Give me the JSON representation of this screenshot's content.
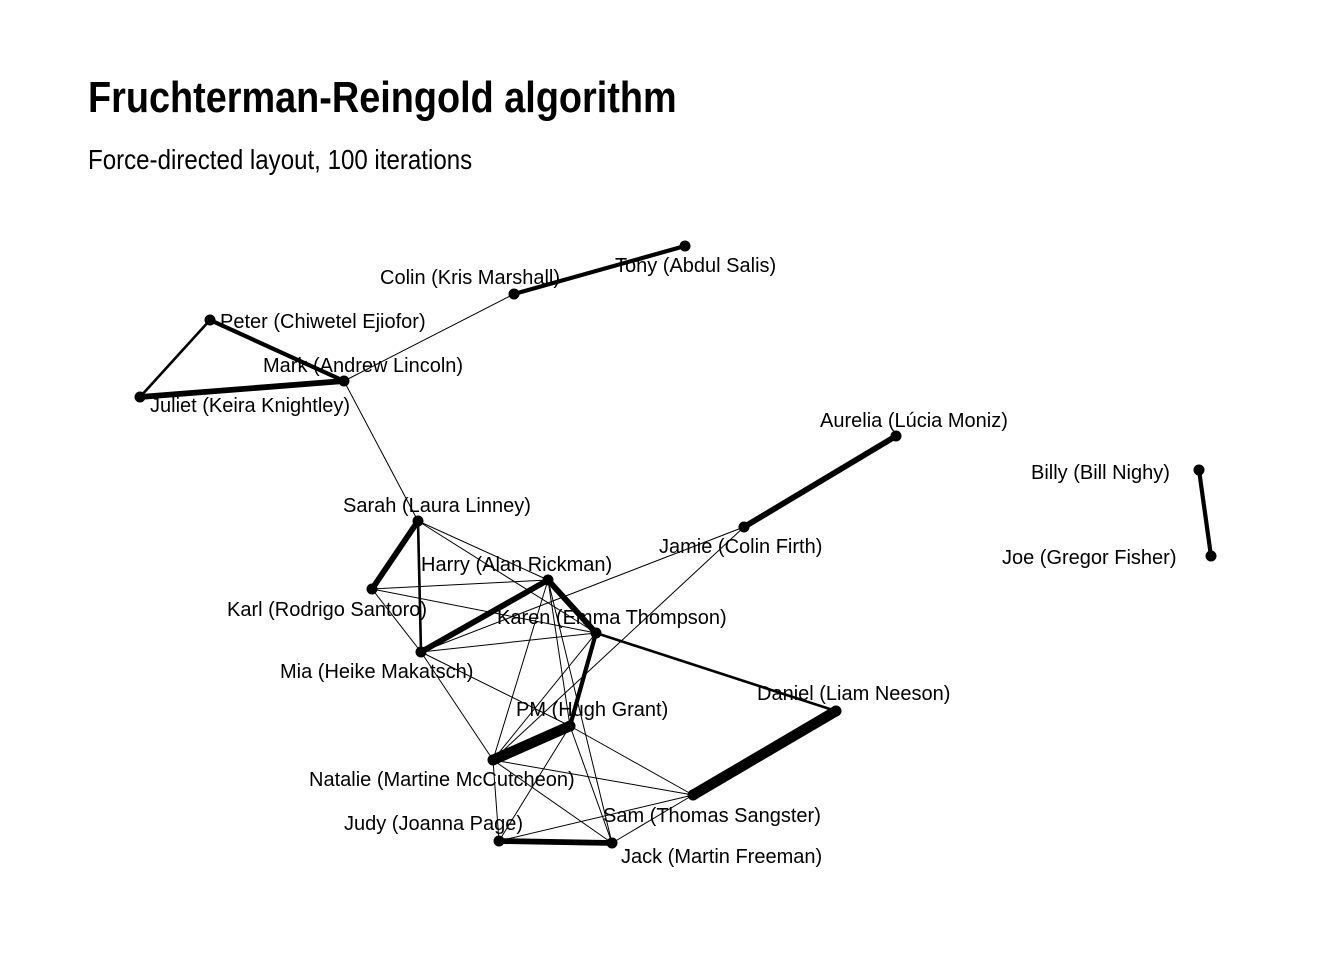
{
  "title": "Fruchterman-Reingold algorithm",
  "subtitle": "Force-directed layout, 100 iterations",
  "colors": {
    "edge": "#000000",
    "node": "#000000",
    "text": "#000000",
    "background": "#ffffff"
  },
  "nodes": [
    {
      "id": "tony",
      "label": "Tony (Abdul Salis)"
    },
    {
      "id": "colin",
      "label": "Colin (Kris Marshall)"
    },
    {
      "id": "peter",
      "label": "Peter (Chiwetel Ejiofor)"
    },
    {
      "id": "mark",
      "label": "Mark (Andrew Lincoln)"
    },
    {
      "id": "juliet",
      "label": "Juliet (Keira Knightley)"
    },
    {
      "id": "aurelia",
      "label": "Aurelia (Lúcia Moniz)"
    },
    {
      "id": "billy",
      "label": "Billy (Bill Nighy)"
    },
    {
      "id": "joe",
      "label": "Joe (Gregor Fisher)"
    },
    {
      "id": "sarah",
      "label": "Sarah (Laura Linney)"
    },
    {
      "id": "jamie",
      "label": "Jamie (Colin Firth)"
    },
    {
      "id": "harry",
      "label": "Harry (Alan Rickman)"
    },
    {
      "id": "karl",
      "label": "Karl (Rodrigo Santoro)"
    },
    {
      "id": "karen",
      "label": "Karen (Emma Thompson)"
    },
    {
      "id": "mia",
      "label": "Mia (Heike Makatsch)"
    },
    {
      "id": "daniel",
      "label": "Daniel (Liam Neeson)"
    },
    {
      "id": "pm",
      "label": "PM (Hugh Grant)"
    },
    {
      "id": "natalie",
      "label": "Natalie (Martine McCutcheon)"
    },
    {
      "id": "sam",
      "label": "Sam (Thomas Sangster)"
    },
    {
      "id": "judy",
      "label": "Judy (Joanna Page)"
    },
    {
      "id": "jack",
      "label": "Jack (Martin Freeman)"
    }
  ],
  "edges": [
    {
      "source": "colin",
      "target": "tony",
      "weight": 3
    },
    {
      "source": "colin",
      "target": "mark",
      "weight": 1
    },
    {
      "source": "peter",
      "target": "mark",
      "weight": 3
    },
    {
      "source": "peter",
      "target": "juliet",
      "weight": 2
    },
    {
      "source": "juliet",
      "target": "mark",
      "weight": 4
    },
    {
      "source": "mark",
      "target": "sarah",
      "weight": 1
    },
    {
      "source": "aurelia",
      "target": "jamie",
      "weight": 4
    },
    {
      "source": "billy",
      "target": "joe",
      "weight": 3
    },
    {
      "source": "sarah",
      "target": "karl",
      "weight": 4
    },
    {
      "source": "sarah",
      "target": "mia",
      "weight": 2
    },
    {
      "source": "sarah",
      "target": "harry",
      "weight": 1
    },
    {
      "source": "sarah",
      "target": "karen",
      "weight": 1
    },
    {
      "source": "jamie",
      "target": "mia",
      "weight": 1
    },
    {
      "source": "jamie",
      "target": "natalie",
      "weight": 1
    },
    {
      "source": "karl",
      "target": "harry",
      "weight": 1
    },
    {
      "source": "karl",
      "target": "karen",
      "weight": 1
    },
    {
      "source": "karl",
      "target": "mia",
      "weight": 1
    },
    {
      "source": "harry",
      "target": "mia",
      "weight": 4
    },
    {
      "source": "harry",
      "target": "karen",
      "weight": 4
    },
    {
      "source": "harry",
      "target": "pm",
      "weight": 1
    },
    {
      "source": "harry",
      "target": "natalie",
      "weight": 1
    },
    {
      "source": "harry",
      "target": "jack",
      "weight": 1
    },
    {
      "source": "karen",
      "target": "mia",
      "weight": 1
    },
    {
      "source": "karen",
      "target": "daniel",
      "weight": 2
    },
    {
      "source": "karen",
      "target": "pm",
      "weight": 3
    },
    {
      "source": "karen",
      "target": "natalie",
      "weight": 1
    },
    {
      "source": "mia",
      "target": "pm",
      "weight": 1
    },
    {
      "source": "mia",
      "target": "natalie",
      "weight": 1
    },
    {
      "source": "daniel",
      "target": "sam",
      "weight": 7
    },
    {
      "source": "pm",
      "target": "natalie",
      "weight": 7
    },
    {
      "source": "pm",
      "target": "sam",
      "weight": 1
    },
    {
      "source": "pm",
      "target": "judy",
      "weight": 1
    },
    {
      "source": "pm",
      "target": "jack",
      "weight": 1
    },
    {
      "source": "natalie",
      "target": "sam",
      "weight": 1
    },
    {
      "source": "natalie",
      "target": "judy",
      "weight": 1
    },
    {
      "source": "natalie",
      "target": "jack",
      "weight": 1
    },
    {
      "source": "sam",
      "target": "judy",
      "weight": 1
    },
    {
      "source": "sam",
      "target": "jack",
      "weight": 1
    },
    {
      "source": "judy",
      "target": "jack",
      "weight": 4
    }
  ]
}
